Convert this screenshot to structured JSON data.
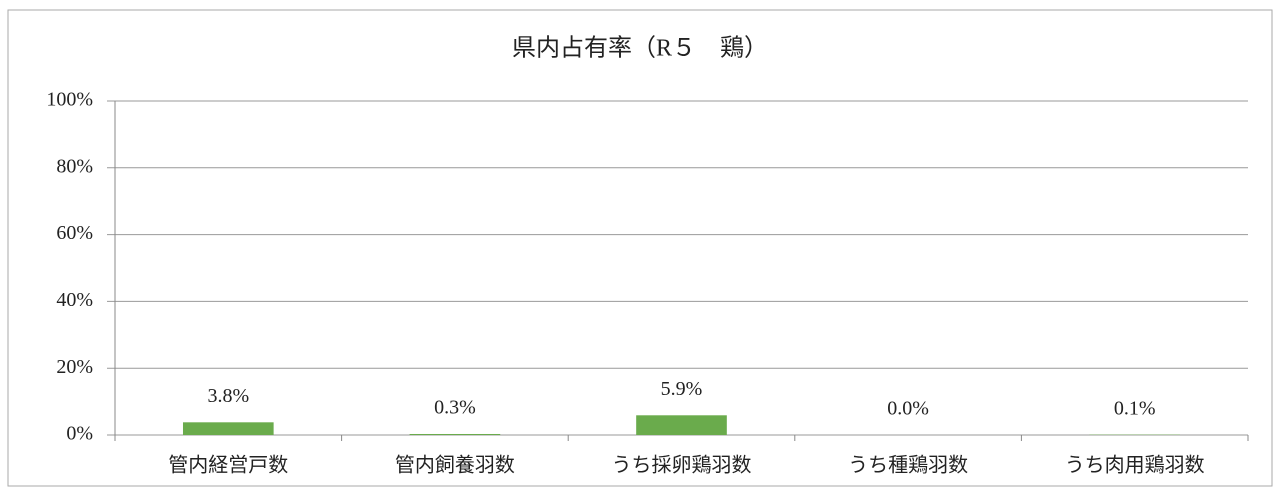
{
  "chart_data": {
    "type": "bar",
    "title": "県内占有率（R５　鶏）",
    "categories": [
      "管内経営戸数",
      "管内飼養羽数",
      "うち採卵鶏羽数",
      "うち種鶏羽数",
      "うち肉用鶏羽数"
    ],
    "values": [
      3.8,
      0.3,
      5.9,
      0.0,
      0.1
    ],
    "value_labels": [
      "3.8%",
      "0.3%",
      "5.9%",
      "0.0%",
      "0.1%"
    ],
    "color": "#6aab4c",
    "ylim": [
      0,
      100
    ],
    "yticks": [
      {
        "value": 0,
        "label": "0%"
      },
      {
        "value": 20,
        "label": "20%"
      },
      {
        "value": 40,
        "label": "40%"
      },
      {
        "value": 60,
        "label": "60%"
      },
      {
        "value": 80,
        "label": "80%"
      },
      {
        "value": 100,
        "label": "100%"
      }
    ],
    "grid": true
  }
}
